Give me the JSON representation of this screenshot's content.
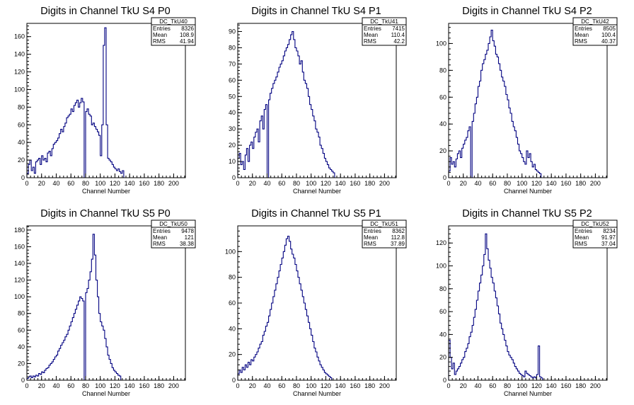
{
  "chart_data": [
    {
      "type": "histogram",
      "title": "Digits in Channel TkU S4 P0",
      "xlabel": "Channel Number",
      "ylabel": "",
      "xlim": [
        0,
        216
      ],
      "ylim": [
        0,
        175
      ],
      "yticks": [
        0,
        20,
        40,
        60,
        80,
        100,
        120,
        140,
        160
      ],
      "xticks": [
        0,
        20,
        40,
        60,
        80,
        100,
        120,
        140,
        160,
        180,
        200
      ],
      "stats": {
        "name": "DC_TkU40",
        "rows": [
          {
            "label": "Entries",
            "value": "8326"
          },
          {
            "label": "Mean",
            "value": "108.9"
          },
          {
            "label": "RMS",
            "value": "41.94"
          }
        ]
      },
      "bin_width": 2,
      "values": [
        5,
        15,
        20,
        8,
        12,
        5,
        18,
        20,
        22,
        15,
        25,
        20,
        22,
        18,
        28,
        30,
        25,
        33,
        38,
        40,
        42,
        45,
        50,
        55,
        52,
        58,
        62,
        68,
        70,
        72,
        78,
        75,
        82,
        85,
        88,
        80,
        85,
        90,
        86,
        0,
        75,
        78,
        72,
        70,
        60,
        62,
        58,
        55,
        52,
        48,
        25,
        60,
        150,
        170,
        60,
        22,
        20,
        18,
        15,
        12,
        10,
        8,
        10,
        7,
        5,
        8
      ]
    },
    {
      "type": "histogram",
      "title": "Digits in Channel TkU S4 P1",
      "xlabel": "Channel Number",
      "ylabel": "",
      "xlim": [
        0,
        216
      ],
      "ylim": [
        0,
        95
      ],
      "yticks": [
        0,
        10,
        20,
        30,
        40,
        50,
        60,
        70,
        80,
        90
      ],
      "xticks": [
        0,
        20,
        40,
        60,
        80,
        100,
        120,
        140,
        160,
        180,
        200
      ],
      "stats": {
        "name": "DC_TkU41",
        "rows": [
          {
            "label": "Entries",
            "value": "7415"
          },
          {
            "label": "Mean",
            "value": "110.4"
          },
          {
            "label": "RMS",
            "value": "42.2"
          }
        ]
      },
      "bin_width": 2,
      "values": [
        12,
        15,
        8,
        10,
        5,
        14,
        18,
        10,
        20,
        22,
        18,
        25,
        28,
        30,
        22,
        35,
        38,
        30,
        42,
        45,
        0,
        48,
        52,
        55,
        58,
        60,
        62,
        65,
        68,
        70,
        72,
        75,
        78,
        80,
        82,
        85,
        88,
        90,
        85,
        80,
        78,
        75,
        70,
        72,
        65,
        60,
        58,
        55,
        50,
        45,
        42,
        38,
        35,
        30,
        28,
        25,
        20,
        18,
        15,
        12,
        10,
        8,
        6,
        5,
        4,
        3
      ]
    },
    {
      "type": "histogram",
      "title": "Digits in Channel TkU S4 P2",
      "xlabel": "Channel Number",
      "ylabel": "",
      "xlim": [
        0,
        216
      ],
      "ylim": [
        0,
        115
      ],
      "yticks": [
        0,
        20,
        40,
        60,
        80,
        100
      ],
      "xticks": [
        0,
        20,
        40,
        60,
        80,
        100,
        120,
        140,
        160,
        180,
        200
      ],
      "stats": {
        "name": "DC_TkU42",
        "rows": [
          {
            "label": "Entries",
            "value": "8505"
          },
          {
            "label": "Mean",
            "value": "100.4"
          },
          {
            "label": "RMS",
            "value": "40.37"
          }
        ]
      },
      "bin_width": 2,
      "values": [
        5,
        15,
        10,
        12,
        8,
        14,
        18,
        20,
        15,
        22,
        25,
        28,
        30,
        35,
        38,
        0,
        42,
        48,
        55,
        60,
        68,
        72,
        80,
        85,
        88,
        92,
        95,
        100,
        105,
        110,
        102,
        98,
        92,
        90,
        85,
        80,
        75,
        72,
        68,
        62,
        58,
        52,
        48,
        42,
        38,
        35,
        30,
        25,
        20,
        18,
        15,
        12,
        10,
        20,
        15,
        18,
        12,
        8,
        10,
        6,
        5,
        4,
        3
      ]
    },
    {
      "type": "histogram",
      "title": "Digits in Channel TkU S5 P0",
      "xlabel": "Channel Number",
      "ylabel": "",
      "xlim": [
        0,
        216
      ],
      "ylim": [
        0,
        185
      ],
      "yticks": [
        0,
        20,
        40,
        60,
        80,
        100,
        120,
        140,
        160,
        180
      ],
      "xticks": [
        0,
        20,
        40,
        60,
        80,
        100,
        120,
        140,
        160,
        180,
        200
      ],
      "stats": {
        "name": "DC_TkU50",
        "rows": [
          {
            "label": "Entries",
            "value": "9478"
          },
          {
            "label": "Mean",
            "value": "121"
          },
          {
            "label": "RMS",
            "value": "38.38"
          }
        ]
      },
      "bin_width": 2,
      "values": [
        2,
        4,
        5,
        3,
        5,
        4,
        6,
        5,
        8,
        7,
        10,
        9,
        12,
        14,
        15,
        18,
        20,
        22,
        25,
        28,
        30,
        35,
        38,
        42,
        45,
        48,
        52,
        55,
        60,
        65,
        70,
        75,
        80,
        85,
        90,
        95,
        100,
        98,
        95,
        0,
        105,
        110,
        120,
        130,
        145,
        175,
        150,
        120,
        100,
        80,
        70,
        65,
        60,
        50,
        40,
        30,
        25,
        20,
        15,
        12,
        10,
        8,
        6,
        5
      ]
    },
    {
      "type": "histogram",
      "title": "Digits in Channel TkU S5 P1",
      "xlabel": "Channel Number",
      "ylabel": "",
      "xlim": [
        0,
        216
      ],
      "ylim": [
        0,
        120
      ],
      "yticks": [
        0,
        20,
        40,
        60,
        80,
        100
      ],
      "xticks": [
        0,
        20,
        40,
        60,
        80,
        100,
        120,
        140,
        160,
        180,
        200
      ],
      "stats": {
        "name": "DC_TkU51",
        "rows": [
          {
            "label": "Entries",
            "value": "8362"
          },
          {
            "label": "Mean",
            "value": "112.8"
          },
          {
            "label": "RMS",
            "value": "37.89"
          }
        ]
      },
      "bin_width": 2,
      "values": [
        5,
        8,
        6,
        10,
        8,
        12,
        10,
        14,
        12,
        16,
        15,
        18,
        20,
        22,
        25,
        28,
        30,
        35,
        38,
        42,
        45,
        50,
        55,
        60,
        65,
        70,
        75,
        80,
        85,
        90,
        95,
        100,
        105,
        110,
        112,
        108,
        102,
        98,
        95,
        90,
        85,
        80,
        75,
        70,
        65,
        60,
        55,
        50,
        45,
        40,
        35,
        30,
        25,
        22,
        18,
        15,
        12,
        10,
        8,
        6,
        5,
        4,
        3,
        2
      ]
    },
    {
      "type": "histogram",
      "title": "Digits in Channel TkU S5 P2",
      "xlabel": "Channel Number",
      "ylabel": "",
      "xlim": [
        0,
        216
      ],
      "ylim": [
        0,
        135
      ],
      "yticks": [
        0,
        20,
        40,
        60,
        80,
        100,
        120
      ],
      "xticks": [
        0,
        20,
        40,
        60,
        80,
        100,
        120,
        140,
        160,
        180,
        200
      ],
      "stats": {
        "name": "DC_TkU52",
        "rows": [
          {
            "label": "Entries",
            "value": "8234"
          },
          {
            "label": "Mean",
            "value": "91.97"
          },
          {
            "label": "RMS",
            "value": "37.04"
          }
        ]
      },
      "bin_width": 2,
      "values": [
        35,
        20,
        10,
        15,
        5,
        8,
        10,
        12,
        15,
        18,
        20,
        25,
        28,
        32,
        38,
        42,
        48,
        55,
        62,
        70,
        78,
        85,
        92,
        100,
        110,
        128,
        115,
        105,
        98,
        90,
        85,
        78,
        72,
        65,
        58,
        50,
        45,
        40,
        35,
        30,
        25,
        22,
        20,
        18,
        15,
        12,
        10,
        8,
        6,
        5,
        4,
        3,
        8,
        6,
        5,
        4,
        3,
        2,
        3,
        2,
        5,
        30,
        3,
        2
      ]
    }
  ]
}
